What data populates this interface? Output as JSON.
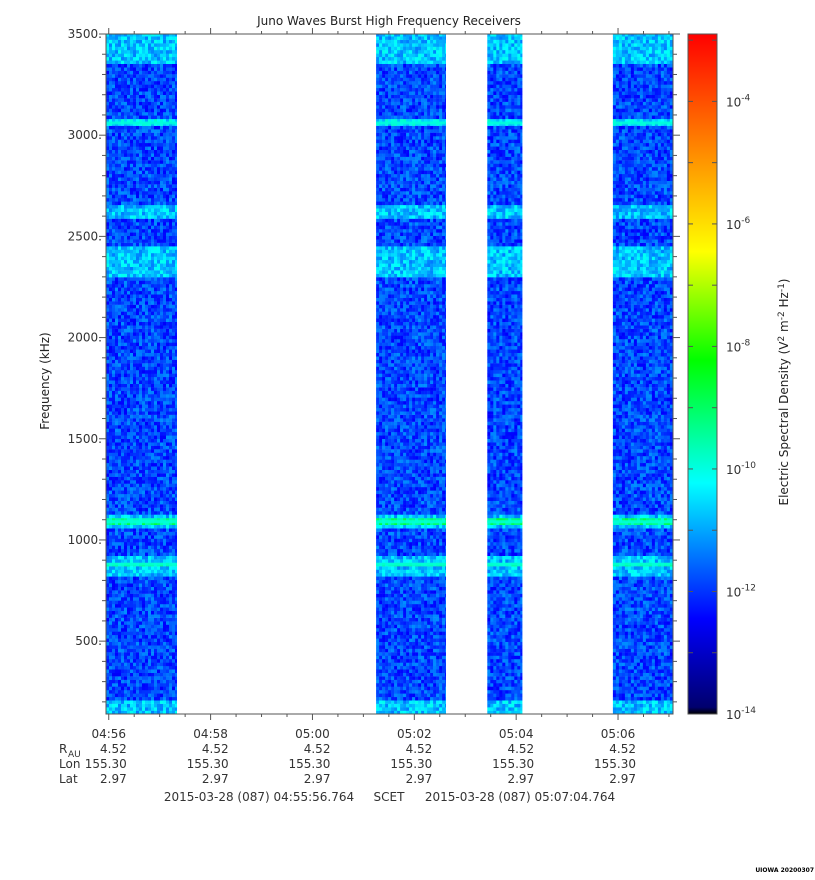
{
  "chart_data": {
    "type": "heatmap",
    "title": "Juno Waves Burst High Frequency Receivers",
    "ylabel": "Frequency (kHz)",
    "ylim": [
      140,
      3500
    ],
    "yticks": [
      500,
      1000,
      1500,
      2000,
      2500,
      3000,
      3500
    ],
    "ytick_labels": [
      "500.",
      "1000.",
      "1500.",
      "2000.",
      "2500.",
      "3000.",
      "3500."
    ],
    "xlim": [
      "04:55:56.764",
      "05:07:04.764"
    ],
    "xticks": [
      "04:56",
      "04:58",
      "05:00",
      "05:02",
      "05:04",
      "05:06"
    ],
    "ephemeris": {
      "rows": [
        {
          "label": "R",
          "sub": "AU",
          "values": [
            "4.52",
            "4.52",
            "4.52",
            "4.52",
            "4.52",
            "4.52"
          ]
        },
        {
          "label": "Lon",
          "sub": "",
          "values": [
            "155.30",
            "155.30",
            "155.30",
            "155.30",
            "155.30",
            "155.30"
          ]
        },
        {
          "label": "Lat",
          "sub": "",
          "values": [
            "2.97",
            "2.97",
            "2.97",
            "2.97",
            "2.97",
            "2.97"
          ]
        }
      ]
    },
    "time_range_text": {
      "start": "2015-03-28 (087) 04:55:56.764",
      "middle": "SCET",
      "end": "2015-03-28 (087) 05:07:04.764"
    },
    "data_segments": [
      {
        "start": "04:55:56.764",
        "end": "04:57:20"
      },
      {
        "start": "05:01:15",
        "end": "05:02:37"
      },
      {
        "start": "05:03:26",
        "end": "05:04:07"
      },
      {
        "start": "05:05:54",
        "end": "05:07:04.764"
      }
    ],
    "spectral_features_khz": {
      "bright_lines": [
        3060,
        1090,
        880
      ],
      "bright_bands": [
        [
          2300,
          2450
        ],
        [
          2580,
          2650
        ],
        [
          1050,
          1130
        ],
        [
          820,
          920
        ],
        [
          140,
          200
        ],
        [
          3350,
          3500
        ]
      ],
      "typical_level_exp": -11.9
    },
    "colorbar": {
      "label": "Electric Spectral Density (V² m⁻² Hz⁻¹)",
      "label_main": "Electric Spectral Density (V",
      "label_sup1": "2",
      "label_mid1": " m",
      "label_sup2": "-2",
      "label_mid2": " Hz",
      "label_sup3": "-1",
      "label_end": ")",
      "range_exp": [
        -14,
        -2.9
      ],
      "tick_exps": [
        -14,
        -12,
        -10,
        -8,
        -6,
        -4
      ],
      "tick_base": "10",
      "scale": "log",
      "colors": [
        "#000070",
        "#0000ff",
        "#00ffff",
        "#00ff00",
        "#ffff00",
        "#ff8000",
        "#ff0000"
      ]
    },
    "footer_tag": "UIOWA 20200307"
  }
}
